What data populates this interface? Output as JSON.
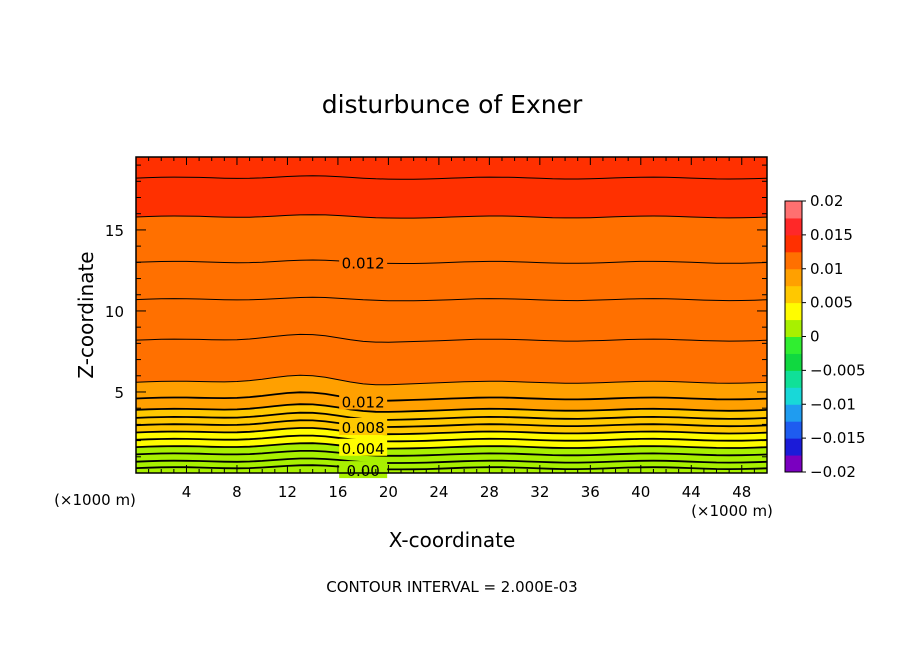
{
  "chart_data": {
    "type": "heatmap",
    "title": "disturbunce of Exner",
    "xlabel": "X-coordinate",
    "ylabel": "Z-coordinate",
    "x_unit_left": "(×1000 m)",
    "x_unit_right": "(×1000 m)",
    "xticks": [
      "4",
      "8",
      "12",
      "16",
      "20",
      "24",
      "28",
      "32",
      "36",
      "40",
      "44",
      "48"
    ],
    "yticks": [
      "5",
      "10",
      "15"
    ],
    "xlim": [
      0,
      50
    ],
    "ylim": [
      0,
      19.5
    ],
    "footer": "CONTOUR INTERVAL = 2.000E-03",
    "colorbar": {
      "ticks": [
        "0.02",
        "0.015",
        "0.01",
        "0.005",
        "0",
        "-0.005",
        "-0.01",
        "-0.015",
        "-0.02"
      ],
      "min": -0.02,
      "max": 0.02,
      "step": 0.0025,
      "colors": [
        "#7a00c0",
        "#1b1bd8",
        "#1e5cf0",
        "#1f9cf0",
        "#18d8d8",
        "#10e098",
        "#10d840",
        "#30ee30",
        "#a8f000",
        "#fffc00",
        "#ffc800",
        "#ffa000",
        "#ff7000",
        "#ff3000",
        "#ff2828",
        "#ff7070"
      ]
    },
    "levels": [
      {
        "z": 0.3,
        "value": 0.0
      },
      {
        "z": 0.7,
        "value": 0.001
      },
      {
        "z": 1.15,
        "value": 0.002
      },
      {
        "z": 1.6,
        "value": 0.003
      },
      {
        "z": 2.05,
        "value": 0.004
      },
      {
        "z": 2.5,
        "value": 0.005
      },
      {
        "z": 2.95,
        "value": 0.006
      },
      {
        "z": 3.4,
        "value": 0.007
      },
      {
        "z": 3.9,
        "value": 0.008
      },
      {
        "z": 4.6,
        "value": 0.009
      },
      {
        "z": 5.6,
        "value": 0.01
      },
      {
        "z": 8.2,
        "value": 0.011
      },
      {
        "z": 10.7,
        "value": 0.0115
      },
      {
        "z": 13.0,
        "value": 0.012
      },
      {
        "z": 15.8,
        "value": 0.0125
      },
      {
        "z": 18.2,
        "value": 0.013
      }
    ],
    "contours": [
      {
        "label": "0.00",
        "z": 0.2
      },
      {
        "label": "0.004",
        "z": 1.6
      },
      {
        "label": "0.008",
        "z": 2.9
      },
      {
        "label": "0.012",
        "z": 4.5
      },
      {
        "label": "0.012",
        "z": 13.0
      }
    ]
  }
}
